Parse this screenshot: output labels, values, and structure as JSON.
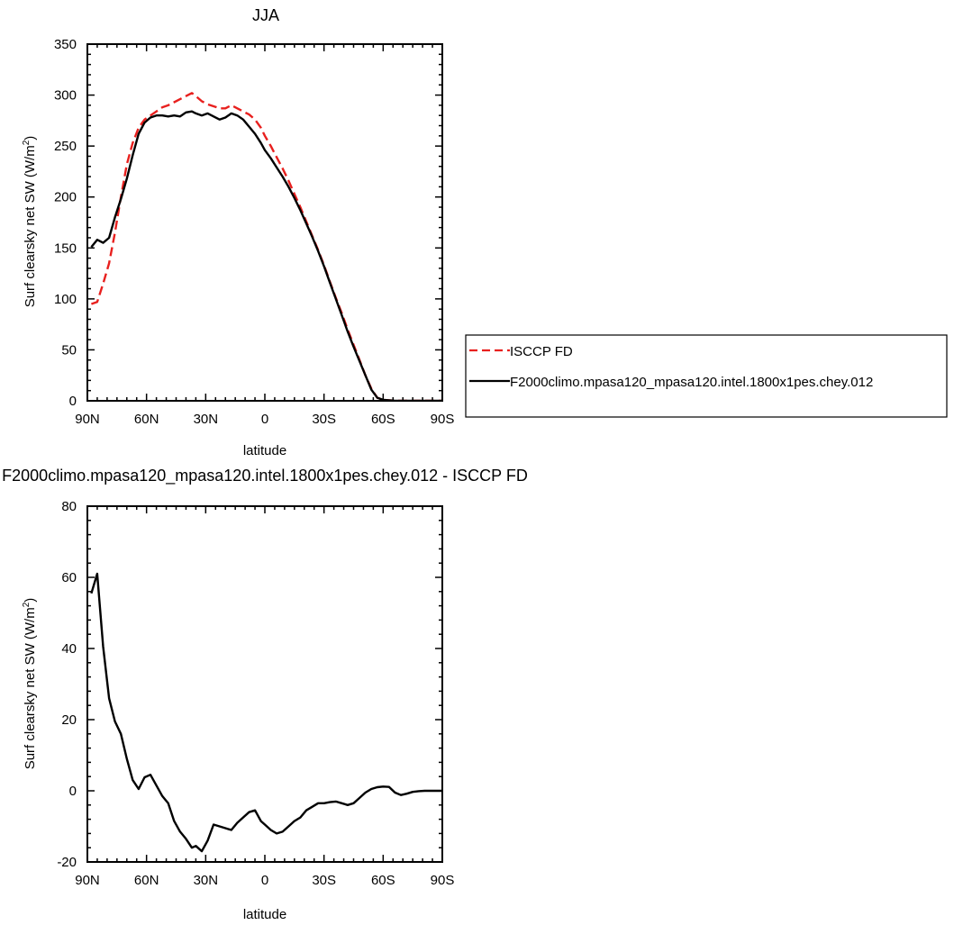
{
  "chart_data": [
    {
      "type": "line",
      "title": "JJA",
      "xlabel": "latitude",
      "ylabel": "Surf clearsky net SW (W/m",
      "ylabel_sup": "2",
      "ylabel_close": ")",
      "xlim": [
        90,
        -90
      ],
      "ylim": [
        0,
        350
      ],
      "xticks": [
        {
          "value": 90,
          "label": "90N"
        },
        {
          "value": 60,
          "label": "60N"
        },
        {
          "value": 30,
          "label": "30N"
        },
        {
          "value": 0,
          "label": "0"
        },
        {
          "value": -30,
          "label": "30S"
        },
        {
          "value": -60,
          "label": "60S"
        },
        {
          "value": -90,
          "label": "90S"
        }
      ],
      "yticks": [
        0,
        50,
        100,
        150,
        200,
        250,
        300,
        350
      ],
      "legend_placement": "right",
      "series": [
        {
          "name": "ISCCP FD",
          "color": "#e8201e",
          "dash": "dashed",
          "x": [
            88,
            85,
            82,
            79,
            76,
            73,
            70,
            67,
            64,
            61,
            58,
            55,
            52,
            49,
            46,
            43,
            40,
            37,
            35,
            32,
            29,
            26,
            23,
            20,
            17,
            14,
            11,
            8,
            5,
            2,
            0,
            -3,
            -6,
            -9,
            -12,
            -15,
            -18,
            -21,
            -24,
            -27,
            -30,
            -33,
            -36,
            -39,
            -42,
            -45,
            -48,
            -51,
            -54,
            -57,
            -60,
            -63,
            -66,
            -69,
            -72,
            -75,
            -78,
            -81,
            -84,
            -87,
            -90
          ],
          "y": [
            95,
            97,
            115,
            135,
            165,
            200,
            232,
            253,
            268,
            276,
            280,
            284,
            288,
            290,
            293,
            296,
            299,
            302,
            299,
            294,
            291,
            289,
            287,
            287,
            290,
            287,
            284,
            281,
            276,
            268,
            260,
            250,
            239,
            228,
            216,
            203,
            190,
            176,
            162,
            148,
            133,
            117,
            101,
            86,
            70,
            55,
            40,
            25,
            12,
            3,
            1,
            0.5,
            0.2,
            0,
            0,
            0,
            0,
            0,
            0,
            0,
            0
          ]
        },
        {
          "name": "F2000climo.mpasa120_mpasa120.intel.1800x1pes.chey.012",
          "color": "#000000",
          "dash": "solid",
          "x": [
            88,
            85,
            82,
            79,
            76,
            73,
            70,
            67,
            64,
            61,
            58,
            55,
            52,
            49,
            46,
            43,
            40,
            37,
            35,
            32,
            29,
            26,
            23,
            20,
            17,
            14,
            11,
            8,
            5,
            2,
            0,
            -3,
            -6,
            -9,
            -12,
            -15,
            -18,
            -21,
            -24,
            -27,
            -30,
            -33,
            -36,
            -39,
            -42,
            -45,
            -48,
            -51,
            -54,
            -57,
            -60,
            -63,
            -66,
            -69,
            -72,
            -75,
            -78,
            -81,
            -84,
            -87,
            -90
          ],
          "y": [
            151,
            158,
            155,
            160,
            180,
            198,
            218,
            241,
            262,
            273,
            278,
            280,
            280,
            279,
            280,
            279,
            283,
            284,
            282,
            280,
            282,
            279,
            276,
            278,
            282,
            280,
            276,
            269,
            262,
            253,
            246,
            238,
            229,
            220,
            210,
            199,
            187,
            174,
            161,
            147,
            132,
            116,
            100,
            84,
            68,
            53,
            39,
            25,
            11,
            3,
            1,
            0.5,
            0,
            0,
            0,
            0,
            0,
            0,
            0,
            0,
            0
          ]
        }
      ]
    },
    {
      "type": "line",
      "title": "F2000climo.mpasa120_mpasa120.intel.1800x1pes.chey.012 - ISCCP FD",
      "xlabel": "latitude",
      "ylabel": "Surf clearsky net SW (W/m",
      "ylabel_sup": "2",
      "ylabel_close": ")",
      "xlim": [
        90,
        -90
      ],
      "ylim": [
        -20,
        80
      ],
      "xticks": [
        {
          "value": 90,
          "label": "90N"
        },
        {
          "value": 60,
          "label": "60N"
        },
        {
          "value": 30,
          "label": "30N"
        },
        {
          "value": 0,
          "label": "0"
        },
        {
          "value": -30,
          "label": "30S"
        },
        {
          "value": -60,
          "label": "60S"
        },
        {
          "value": -90,
          "label": "90S"
        }
      ],
      "yticks": [
        -20,
        0,
        20,
        40,
        60,
        80
      ],
      "series": [
        {
          "color": "#000000",
          "dash": "solid",
          "x": [
            88,
            85,
            82,
            79,
            76,
            73,
            70,
            67,
            64,
            61,
            58,
            55,
            52,
            49,
            46,
            43,
            40,
            37,
            35,
            32,
            29,
            26,
            23,
            20,
            17,
            14,
            11,
            8,
            5,
            2,
            0,
            -3,
            -6,
            -9,
            -12,
            -15,
            -18,
            -21,
            -24,
            -27,
            -30,
            -33,
            -36,
            -39,
            -42,
            -45,
            -48,
            -51,
            -54,
            -57,
            -60,
            -63,
            -66,
            -69,
            -72,
            -75,
            -78,
            -81,
            -84,
            -87,
            -90
          ],
          "y": [
            55.5,
            61,
            40.5,
            26,
            19.5,
            16,
            9,
            3,
            0.5,
            3.8,
            4.5,
            1.5,
            -1.5,
            -3.5,
            -8.5,
            -11.5,
            -13.5,
            -16,
            -15.5,
            -17,
            -14,
            -9.5,
            -10,
            -10.5,
            -11,
            -9,
            -7.5,
            -6,
            -5.5,
            -8.5,
            -9.5,
            -11,
            -12,
            -11.5,
            -10,
            -8.5,
            -7.5,
            -5.5,
            -4.5,
            -3.5,
            -3.5,
            -3.2,
            -3,
            -3.5,
            -4,
            -3.5,
            -2,
            -0.5,
            0.5,
            1,
            1.2,
            1.1,
            -0.5,
            -1.2,
            -0.8,
            -0.3,
            -0.1,
            0,
            0,
            0,
            0
          ]
        }
      ]
    }
  ]
}
